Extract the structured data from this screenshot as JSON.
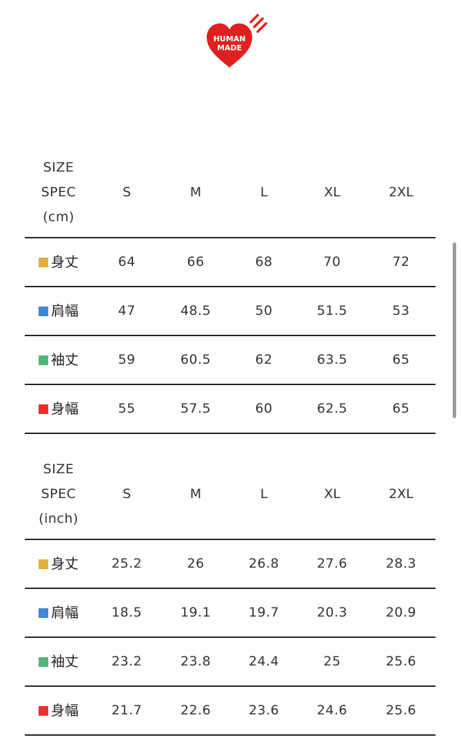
{
  "logo": {
    "text_line1": "HUMAN",
    "text_line2": "MADE",
    "color": "#e02020"
  },
  "sizes": [
    "S",
    "M",
    "L",
    "XL",
    "2XL"
  ],
  "tables": [
    {
      "header": [
        "SIZE",
        "SPEC",
        "(cm)"
      ],
      "rows": [
        {
          "label": "身丈",
          "color": "#e3ae3c",
          "values": [
            "64",
            "66",
            "68",
            "70",
            "72"
          ]
        },
        {
          "label": "肩幅",
          "color": "#3f86d4",
          "values": [
            "47",
            "48.5",
            "50",
            "51.5",
            "53"
          ]
        },
        {
          "label": "袖丈",
          "color": "#52b57a",
          "values": [
            "59",
            "60.5",
            "62",
            "63.5",
            "65"
          ]
        },
        {
          "label": "身幅",
          "color": "#e8312a",
          "values": [
            "55",
            "57.5",
            "60",
            "62.5",
            "65"
          ]
        }
      ]
    },
    {
      "header": [
        "SIZE",
        "SPEC",
        "(inch)"
      ],
      "rows": [
        {
          "label": "身丈",
          "color": "#e3ae3c",
          "values": [
            "25.2",
            "26",
            "26.8",
            "27.6",
            "28.3"
          ]
        },
        {
          "label": "肩幅",
          "color": "#3f86d4",
          "values": [
            "18.5",
            "19.1",
            "19.7",
            "20.3",
            "20.9"
          ]
        },
        {
          "label": "袖丈",
          "color": "#52b57a",
          "values": [
            "23.2",
            "23.8",
            "24.4",
            "25",
            "25.6"
          ]
        },
        {
          "label": "身幅",
          "color": "#e8312a",
          "values": [
            "21.7",
            "22.6",
            "23.6",
            "24.6",
            "25.6"
          ]
        }
      ]
    }
  ]
}
